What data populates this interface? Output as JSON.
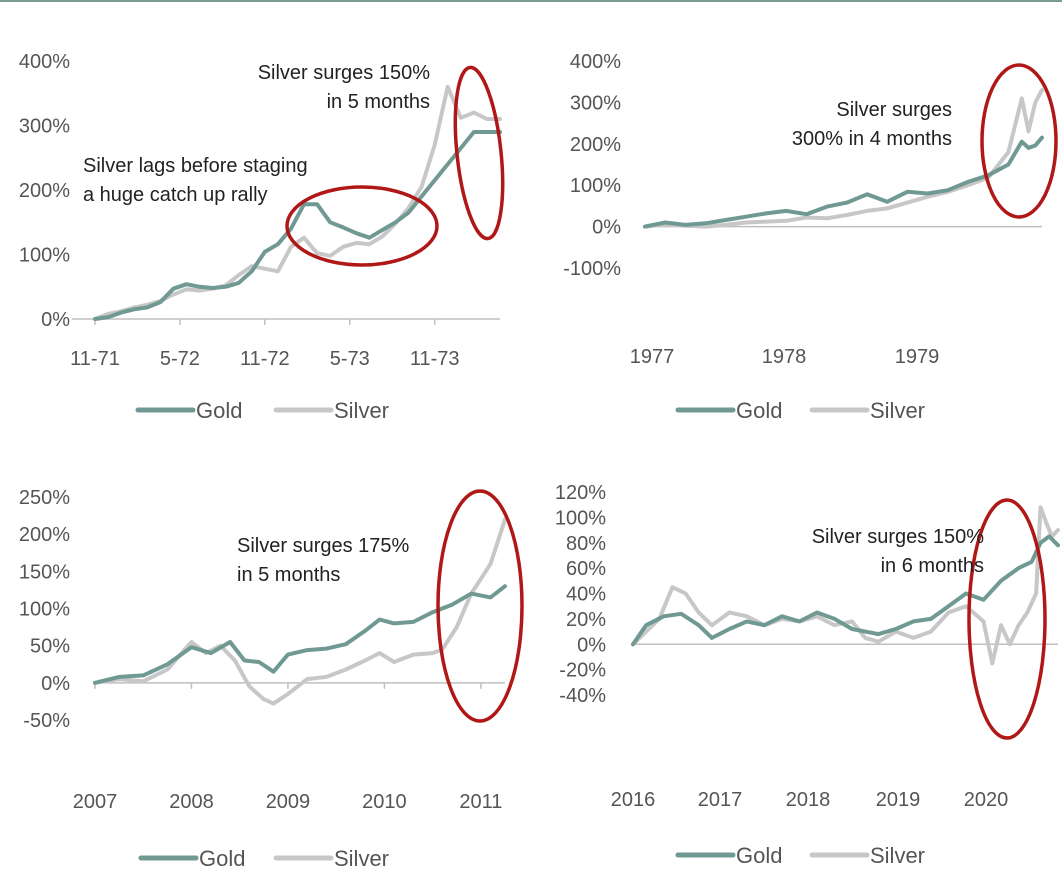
{
  "colors": {
    "gold": "#6f9992",
    "silver": "#c7c7c7",
    "highlight": "#b01717",
    "axis": "#bfbfbf",
    "text": "#555555"
  },
  "legend": {
    "gold": "Gold",
    "silver": "Silver"
  },
  "chart_data": [
    {
      "type": "line",
      "title": "",
      "xlabel": "",
      "ylabel": "",
      "x_ticks": [
        "11-71",
        "5-72",
        "11-72",
        "5-73",
        "11-73"
      ],
      "x_range": [
        0,
        31
      ],
      "y_ticks": [
        "0%",
        "100%",
        "200%",
        "300%",
        "400%"
      ],
      "ylim": [
        0,
        400
      ],
      "series": [
        {
          "name": "Gold",
          "x": [
            0,
            1,
            2,
            3,
            4,
            5,
            6,
            7,
            8,
            9,
            10,
            11,
            12,
            13,
            14,
            15,
            16,
            17,
            18,
            19,
            20,
            21,
            22,
            23,
            24,
            25,
            26,
            27,
            28,
            29,
            30,
            31
          ],
          "values": [
            0,
            3,
            10,
            15,
            18,
            26,
            47,
            54,
            50,
            48,
            50,
            56,
            74,
            104,
            116,
            140,
            178,
            178,
            150,
            142,
            133,
            126,
            138,
            150,
            165,
            190,
            215,
            240,
            265,
            290,
            290,
            290
          ]
        },
        {
          "name": "Silver",
          "x": [
            0,
            1,
            2,
            3,
            4,
            5,
            6,
            7,
            8,
            9,
            10,
            11,
            12,
            13,
            14,
            15,
            16,
            17,
            18,
            19,
            20,
            21,
            22,
            23,
            24,
            25,
            26,
            27,
            28,
            29,
            30,
            31
          ],
          "values": [
            0,
            8,
            12,
            18,
            22,
            28,
            38,
            46,
            44,
            47,
            52,
            68,
            82,
            78,
            74,
            112,
            126,
            102,
            98,
            112,
            118,
            116,
            128,
            148,
            172,
            205,
            270,
            360,
            312,
            320,
            310,
            310
          ]
        }
      ],
      "annotations": [
        {
          "text_lines": [
            "Silver surges 150%",
            "in 5 months"
          ],
          "align": "right"
        },
        {
          "text_lines": [
            "Silver lags before staging",
            "a huge catch up rally"
          ],
          "align": "left"
        }
      ]
    },
    {
      "type": "line",
      "title": "",
      "xlabel": "",
      "ylabel": "",
      "x_ticks": [
        "1977",
        "1978",
        "1979"
      ],
      "x_range": [
        1977,
        1979.95
      ],
      "y_ticks": [
        "-100%",
        "0%",
        "100%",
        "200%",
        "300%",
        "400%"
      ],
      "ylim": [
        -100,
        400
      ],
      "series": [
        {
          "name": "Gold",
          "x": [
            1977.0,
            1977.15,
            1977.3,
            1977.45,
            1977.6,
            1977.75,
            1977.9,
            1978.05,
            1978.2,
            1978.35,
            1978.5,
            1978.65,
            1978.8,
            1978.95,
            1979.1,
            1979.25,
            1979.4,
            1979.55,
            1979.7,
            1979.8,
            1979.85,
            1979.9,
            1979.95
          ],
          "values": [
            0,
            10,
            4,
            8,
            16,
            24,
            32,
            38,
            30,
            48,
            58,
            78,
            60,
            84,
            80,
            88,
            108,
            124,
            150,
            205,
            190,
            196,
            215
          ]
        },
        {
          "name": "Silver",
          "x": [
            1977.0,
            1977.15,
            1977.3,
            1977.45,
            1977.6,
            1977.75,
            1977.9,
            1978.05,
            1978.2,
            1978.35,
            1978.5,
            1978.65,
            1978.8,
            1978.95,
            1979.1,
            1979.25,
            1979.4,
            1979.55,
            1979.7,
            1979.8,
            1979.85,
            1979.9,
            1979.95
          ],
          "values": [
            0,
            6,
            2,
            0,
            4,
            10,
            12,
            14,
            22,
            20,
            28,
            38,
            44,
            58,
            72,
            84,
            100,
            118,
            180,
            310,
            230,
            300,
            330
          ]
        }
      ],
      "annotations": [
        {
          "text_lines": [
            "Silver surges",
            "300% in 4 months"
          ],
          "align": "right"
        }
      ]
    },
    {
      "type": "line",
      "title": "",
      "xlabel": "",
      "ylabel": "",
      "x_ticks": [
        "2007",
        "2008",
        "2009",
        "2010",
        "2011"
      ],
      "x_range": [
        2007,
        2011.25
      ],
      "y_ticks": [
        "-50%",
        "0%",
        "50%",
        "100%",
        "150%",
        "200%",
        "250%"
      ],
      "ylim": [
        -50,
        250
      ],
      "series": [
        {
          "name": "Gold",
          "x": [
            2007.0,
            2007.25,
            2007.5,
            2007.75,
            2008.0,
            2008.2,
            2008.4,
            2008.55,
            2008.7,
            2008.85,
            2009.0,
            2009.2,
            2009.4,
            2009.6,
            2009.8,
            2009.95,
            2010.1,
            2010.3,
            2010.5,
            2010.7,
            2010.9,
            2011.1,
            2011.25
          ],
          "values": [
            0,
            8,
            10,
            25,
            48,
            40,
            55,
            30,
            28,
            15,
            38,
            44,
            46,
            52,
            70,
            85,
            80,
            82,
            95,
            105,
            120,
            115,
            130
          ]
        },
        {
          "name": "Silver",
          "x": [
            2007.0,
            2007.25,
            2007.5,
            2007.75,
            2008.0,
            2008.15,
            2008.3,
            2008.45,
            2008.6,
            2008.75,
            2008.85,
            2009.0,
            2009.2,
            2009.4,
            2009.6,
            2009.8,
            2009.95,
            2010.1,
            2010.3,
            2010.5,
            2010.6,
            2010.75,
            2010.9,
            2011.0,
            2011.1,
            2011.2,
            2011.25
          ],
          "values": [
            0,
            5,
            2,
            18,
            55,
            40,
            50,
            30,
            -5,
            -22,
            -28,
            -15,
            5,
            8,
            18,
            30,
            40,
            28,
            38,
            40,
            45,
            75,
            120,
            140,
            160,
            200,
            220
          ]
        }
      ],
      "annotations": [
        {
          "text_lines": [
            "Silver surges 175%",
            "in 5 months"
          ],
          "align": "left"
        }
      ]
    },
    {
      "type": "line",
      "title": "",
      "xlabel": "",
      "ylabel": "",
      "x_ticks": [
        "2016",
        "2017",
        "2018",
        "2019",
        "2020"
      ],
      "x_range": [
        2016,
        2020.85
      ],
      "y_ticks": [
        "-40%",
        "-20%",
        "0%",
        "20%",
        "40%",
        "60%",
        "80%",
        "100%",
        "120%"
      ],
      "ylim": [
        -40,
        120
      ],
      "series": [
        {
          "name": "Gold",
          "x": [
            2016.0,
            2016.15,
            2016.35,
            2016.55,
            2016.75,
            2016.9,
            2017.1,
            2017.3,
            2017.5,
            2017.7,
            2017.9,
            2018.1,
            2018.3,
            2018.5,
            2018.65,
            2018.8,
            2019.0,
            2019.2,
            2019.4,
            2019.6,
            2019.8,
            2020.0,
            2020.2,
            2020.4,
            2020.55,
            2020.65,
            2020.75,
            2020.85
          ],
          "values": [
            0,
            15,
            22,
            24,
            15,
            5,
            12,
            18,
            15,
            22,
            18,
            25,
            20,
            12,
            10,
            8,
            12,
            18,
            20,
            30,
            40,
            35,
            50,
            60,
            65,
            80,
            85,
            78
          ]
        },
        {
          "name": "Silver",
          "x": [
            2016.0,
            2016.15,
            2016.3,
            2016.45,
            2016.6,
            2016.75,
            2016.9,
            2017.1,
            2017.3,
            2017.5,
            2017.7,
            2017.9,
            2018.1,
            2018.3,
            2018.5,
            2018.65,
            2018.8,
            2019.0,
            2019.2,
            2019.4,
            2019.6,
            2019.8,
            2020.0,
            2020.1,
            2020.2,
            2020.3,
            2020.4,
            2020.5,
            2020.6,
            2020.65,
            2020.72,
            2020.78,
            2020.85
          ],
          "values": [
            0,
            10,
            20,
            45,
            40,
            25,
            15,
            25,
            22,
            15,
            20,
            18,
            22,
            15,
            18,
            5,
            2,
            10,
            5,
            10,
            25,
            30,
            18,
            -15,
            15,
            0,
            15,
            25,
            40,
            108,
            95,
            85,
            90
          ]
        }
      ],
      "annotations": [
        {
          "text_lines": [
            "Silver surges 150%",
            "in 6 months"
          ],
          "align": "right"
        }
      ]
    }
  ]
}
